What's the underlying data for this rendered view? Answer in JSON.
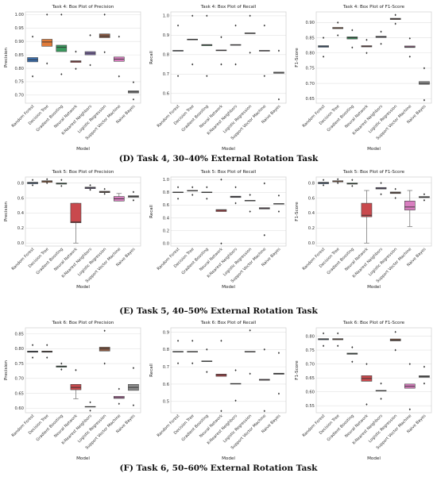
{
  "categories": [
    "Random Forest",
    "Decision Tree",
    "Gradient Boosting",
    "Neural Network",
    "K-Nearest Neighbors",
    "Logistic Regression",
    "Support Vector Machine",
    "Naive Bayes"
  ],
  "colors": [
    "#3a6fb0",
    "#e07b39",
    "#3a9a5e",
    "#c9494d",
    "#7e6aa6",
    "#8a5a44",
    "#d97ec0",
    "#8a8a8a"
  ],
  "rows": [
    {
      "caption": "(D) Task 4, 30–40% External Rotation Task"
    },
    {
      "caption": "(E) Task 5, 40–50% External Rotation Task"
    },
    {
      "caption": "(F) Task 6, 50–60% External Rotation Task"
    }
  ],
  "chart_data": [
    {
      "type": "box",
      "title": "Task 4: Box Plot of Precision",
      "xlabel": "Model",
      "ylabel": "Precision",
      "ylim": [
        0.67,
        1.01
      ],
      "yticks": [
        0.7,
        0.75,
        0.8,
        0.85,
        0.9,
        0.95,
        1.0
      ],
      "boxes": [
        {
          "q1": 0.824,
          "median": 0.832,
          "q3": 0.84,
          "outliers": [
            0.918,
            0.77
          ]
        },
        {
          "q1": 0.882,
          "median": 0.898,
          "q3": 0.908,
          "outliers": [
            1.0,
            0.818
          ]
        },
        {
          "q1": 0.862,
          "median": 0.878,
          "q3": 0.886,
          "outliers": [
            1.0,
            0.778
          ]
        },
        {
          "q1": 0.822,
          "median": 0.826,
          "q3": 0.828,
          "outliers": [
            0.862,
            0.798
          ]
        },
        {
          "q1": 0.85,
          "median": 0.856,
          "q3": 0.862,
          "outliers": [
            0.923,
            0.812
          ]
        },
        {
          "q1": 0.914,
          "median": 0.92,
          "q3": 0.928,
          "outliers": [
            1.0,
            0.86
          ]
        },
        {
          "q1": 0.826,
          "median": 0.834,
          "q3": 0.842,
          "outliers": [
            0.918,
            0.77
          ]
        },
        {
          "q1": 0.708,
          "median": 0.712,
          "q3": 0.716,
          "outliers": [
            0.748,
            0.684
          ]
        }
      ]
    },
    {
      "type": "box",
      "title": "Task 4: Box Plot of Recall",
      "xlabel": "Model",
      "ylabel": "Recall",
      "ylim": [
        0.55,
        1.02
      ],
      "yticks": [
        0.6,
        0.7,
        0.8,
        0.9,
        1.0
      ],
      "boxes": [
        {
          "q1": 0.818,
          "median": 0.82,
          "q3": 0.822,
          "outliers": [
            0.95,
            0.69
          ]
        },
        {
          "q1": 0.876,
          "median": 0.878,
          "q3": 0.88,
          "outliers": [
            1.0,
            0.75
          ]
        },
        {
          "q1": 0.846,
          "median": 0.85,
          "q3": 0.852,
          "outliers": [
            1.0,
            0.69
          ]
        },
        {
          "q1": 0.82,
          "median": 0.822,
          "q3": 0.824,
          "outliers": [
            0.89,
            0.75
          ]
        },
        {
          "q1": 0.848,
          "median": 0.85,
          "q3": 0.852,
          "outliers": [
            0.95,
            0.75
          ]
        },
        {
          "q1": 0.908,
          "median": 0.91,
          "q3": 0.912,
          "outliers": [
            1.0,
            0.81
          ]
        },
        {
          "q1": 0.818,
          "median": 0.82,
          "q3": 0.822,
          "outliers": [
            0.95,
            0.69
          ]
        },
        {
          "q1": 0.704,
          "median": 0.706,
          "q3": 0.71,
          "outliers": [
            0.82,
            0.57
          ]
        }
      ]
    },
    {
      "type": "box",
      "title": "Task 4: Box Plot of F1-Score",
      "xlabel": "Model",
      "ylabel": "F1-Score",
      "ylim": [
        0.635,
        0.935
      ],
      "yticks": [
        0.65,
        0.7,
        0.75,
        0.8,
        0.85,
        0.9
      ],
      "boxes": [
        {
          "q1": 0.819,
          "median": 0.822,
          "q3": 0.824,
          "outliers": [
            0.85,
            0.788
          ]
        },
        {
          "q1": 0.88,
          "median": 0.882,
          "q3": 0.884,
          "outliers": [
            0.9,
            0.858
          ]
        },
        {
          "q1": 0.846,
          "median": 0.85,
          "q3": 0.853,
          "outliers": [
            0.875,
            0.818
          ]
        },
        {
          "q1": 0.82,
          "median": 0.822,
          "q3": 0.824,
          "outliers": [
            0.843,
            0.8
          ]
        },
        {
          "q1": 0.851,
          "median": 0.853,
          "q3": 0.855,
          "outliers": [
            0.87,
            0.83
          ]
        },
        {
          "q1": 0.91,
          "median": 0.912,
          "q3": 0.914,
          "outliers": [
            0.925,
            0.896
          ]
        },
        {
          "q1": 0.818,
          "median": 0.82,
          "q3": 0.823,
          "outliers": [
            0.848,
            0.788
          ]
        },
        {
          "q1": 0.697,
          "median": 0.7,
          "q3": 0.706,
          "outliers": [
            0.75,
            0.645
          ]
        }
      ]
    },
    {
      "type": "box",
      "title": "Task 5: Box Plot of Precision",
      "xlabel": "Model",
      "ylabel": "Precision",
      "ylim": [
        -0.04,
        0.88
      ],
      "yticks": [
        0.0,
        0.2,
        0.4,
        0.6,
        0.8
      ],
      "boxes": [
        {
          "q1": 0.79,
          "median": 0.8,
          "q3": 0.81,
          "outliers": [
            0.84,
            0.77
          ]
        },
        {
          "q1": 0.81,
          "median": 0.82,
          "q3": 0.83,
          "outliers": [
            0.85,
            0.8
          ]
        },
        {
          "q1": 0.785,
          "median": 0.795,
          "q3": 0.8,
          "outliers": [
            0.84,
            0.76
          ]
        },
        {
          "q1": 0.27,
          "median": 0.28,
          "q3": 0.53,
          "whislo": 0.0,
          "whishi": 0.53,
          "outliers": []
        },
        {
          "q1": 0.725,
          "median": 0.735,
          "q3": 0.745,
          "outliers": [
            0.77,
            0.71
          ]
        },
        {
          "q1": 0.672,
          "median": 0.68,
          "q3": 0.69,
          "outliers": [
            0.72,
            0.655
          ]
        },
        {
          "q1": 0.56,
          "median": 0.59,
          "q3": 0.62,
          "whislo": 0.56,
          "whishi": 0.66,
          "outliers": []
        },
        {
          "q1": 0.61,
          "median": 0.62,
          "q3": 0.63,
          "outliers": [
            0.68,
            0.57
          ]
        }
      ]
    },
    {
      "type": "box",
      "title": "Task 5: Box Plot of Recall",
      "xlabel": "Model",
      "ylabel": "Recall",
      "ylim": [
        -0.04,
        1.04
      ],
      "yticks": [
        0.0,
        0.2,
        0.4,
        0.6,
        0.8,
        1.0
      ],
      "boxes": [
        {
          "q1": 0.795,
          "median": 0.8,
          "q3": 0.805,
          "outliers": [
            0.88,
            0.7
          ]
        },
        {
          "q1": 0.82,
          "median": 0.825,
          "q3": 0.83,
          "outliers": [
            0.88,
            0.76
          ]
        },
        {
          "q1": 0.795,
          "median": 0.8,
          "q3": 0.805,
          "outliers": [
            0.88,
            0.7
          ]
        },
        {
          "q1": 0.5,
          "median": 0.52,
          "q3": 0.53,
          "outliers": [
            1.0,
            0.0
          ]
        },
        {
          "q1": 0.72,
          "median": 0.73,
          "q3": 0.74,
          "outliers": [
            0.88,
            0.63
          ]
        },
        {
          "q1": 0.665,
          "median": 0.67,
          "q3": 0.675,
          "outliers": [
            0.76,
            0.5
          ]
        },
        {
          "q1": 0.54,
          "median": 0.55,
          "q3": 0.56,
          "outliers": [
            0.94,
            0.13
          ]
        },
        {
          "q1": 0.615,
          "median": 0.62,
          "q3": 0.625,
          "outliers": [
            0.75,
            0.5
          ]
        }
      ]
    },
    {
      "type": "box",
      "title": "Task 5: Box Plot of F1-Score",
      "xlabel": "Model",
      "ylabel": "F1-Score",
      "ylim": [
        -0.04,
        0.88
      ],
      "yticks": [
        0.0,
        0.2,
        0.4,
        0.6,
        0.8
      ],
      "boxes": [
        {
          "q1": 0.79,
          "median": 0.8,
          "q3": 0.81,
          "outliers": [
            0.84,
            0.77
          ]
        },
        {
          "q1": 0.815,
          "median": 0.82,
          "q3": 0.83,
          "outliers": [
            0.85,
            0.8
          ]
        },
        {
          "q1": 0.785,
          "median": 0.79,
          "q3": 0.8,
          "outliers": [
            0.84,
            0.76
          ]
        },
        {
          "q1": 0.35,
          "median": 0.37,
          "q3": 0.53,
          "whislo": 0.0,
          "whishi": 0.7,
          "outliers": []
        },
        {
          "q1": 0.72,
          "median": 0.73,
          "q3": 0.74,
          "outliers": [
            0.8,
            0.65
          ]
        },
        {
          "q1": 0.66,
          "median": 0.67,
          "q3": 0.68,
          "outliers": [
            0.72,
            0.6
          ]
        },
        {
          "q1": 0.44,
          "median": 0.48,
          "q3": 0.56,
          "whislo": 0.22,
          "whishi": 0.7,
          "outliers": []
        },
        {
          "q1": 0.605,
          "median": 0.61,
          "q3": 0.62,
          "outliers": [
            0.65,
            0.57
          ]
        }
      ]
    },
    {
      "type": "box",
      "title": "Task 6: Box Plot of Precision",
      "xlabel": "Model",
      "ylabel": "Precision",
      "ylim": [
        0.585,
        0.87
      ],
      "yticks": [
        0.6,
        0.65,
        0.7,
        0.75,
        0.8,
        0.85
      ],
      "boxes": [
        {
          "q1": 0.788,
          "median": 0.79,
          "q3": 0.792,
          "outliers": [
            0.812,
            0.77
          ]
        },
        {
          "q1": 0.788,
          "median": 0.79,
          "q3": 0.792,
          "outliers": [
            0.812,
            0.77
          ]
        },
        {
          "q1": 0.738,
          "median": 0.74,
          "q3": 0.742,
          "outliers": [
            0.75,
            0.73
          ]
        },
        {
          "q1": 0.662,
          "median": 0.67,
          "q3": 0.68,
          "whislo": 0.632,
          "whishi": 0.68,
          "outliers": [
            0.728
          ]
        },
        {
          "q1": 0.604,
          "median": 0.605,
          "q3": 0.606,
          "outliers": [
            0.62,
            0.592
          ]
        },
        {
          "q1": 0.792,
          "median": 0.8,
          "q3": 0.805,
          "outliers": [
            0.86,
            0.75
          ]
        },
        {
          "q1": 0.633,
          "median": 0.636,
          "q3": 0.64,
          "outliers": [
            0.665,
            0.615
          ]
        },
        {
          "q1": 0.66,
          "median": 0.67,
          "q3": 0.68,
          "outliers": [
            0.735,
            0.61
          ]
        }
      ]
    },
    {
      "type": "box",
      "title": "Task 6: Box Plot of Recall",
      "xlabel": "Model",
      "ylabel": "Recall",
      "ylim": [
        0.435,
        0.925
      ],
      "yticks": [
        0.5,
        0.6,
        0.7,
        0.8,
        0.9
      ],
      "boxes": [
        {
          "q1": 0.785,
          "median": 0.787,
          "q3": 0.789,
          "outliers": [
            0.85,
            0.72
          ]
        },
        {
          "q1": 0.785,
          "median": 0.787,
          "q3": 0.789,
          "outliers": [
            0.85,
            0.72
          ]
        },
        {
          "q1": 0.73,
          "median": 0.732,
          "q3": 0.734,
          "outliers": [
            0.8,
            0.67
          ]
        },
        {
          "q1": 0.645,
          "median": 0.652,
          "q3": 0.658,
          "outliers": [
            0.85,
            0.445
          ]
        },
        {
          "q1": 0.6,
          "median": 0.602,
          "q3": 0.604,
          "outliers": [
            0.68,
            0.505
          ]
        },
        {
          "q1": 0.785,
          "median": 0.787,
          "q3": 0.789,
          "outliers": [
            0.91,
            0.66
          ]
        },
        {
          "q1": 0.622,
          "median": 0.625,
          "q3": 0.628,
          "outliers": [
            0.8,
            0.445
          ]
        },
        {
          "q1": 0.657,
          "median": 0.66,
          "q3": 0.663,
          "outliers": [
            0.78,
            0.545
          ]
        }
      ]
    },
    {
      "type": "box",
      "title": "Task 6: Box Plot of F1-Score",
      "xlabel": "Model",
      "ylabel": "F1-Score",
      "ylim": [
        0.525,
        0.83
      ],
      "yticks": [
        0.55,
        0.6,
        0.65,
        0.7,
        0.75,
        0.8
      ],
      "boxes": [
        {
          "q1": 0.787,
          "median": 0.789,
          "q3": 0.791,
          "outliers": [
            0.81,
            0.765
          ]
        },
        {
          "q1": 0.787,
          "median": 0.789,
          "q3": 0.791,
          "outliers": [
            0.81,
            0.765
          ]
        },
        {
          "q1": 0.735,
          "median": 0.737,
          "q3": 0.739,
          "outliers": [
            0.76,
            0.708
          ]
        },
        {
          "q1": 0.638,
          "median": 0.648,
          "q3": 0.658,
          "outliers": [
            0.7,
            0.555
          ]
        },
        {
          "q1": 0.603,
          "median": 0.604,
          "q3": 0.605,
          "outliers": [
            0.63,
            0.575
          ]
        },
        {
          "q1": 0.783,
          "median": 0.786,
          "q3": 0.79,
          "outliers": [
            0.815,
            0.75
          ]
        },
        {
          "q1": 0.613,
          "median": 0.62,
          "q3": 0.628,
          "outliers": [
            0.7,
            0.537
          ]
        },
        {
          "q1": 0.652,
          "median": 0.655,
          "q3": 0.658,
          "outliers": [
            0.69,
            0.63
          ]
        }
      ]
    }
  ]
}
